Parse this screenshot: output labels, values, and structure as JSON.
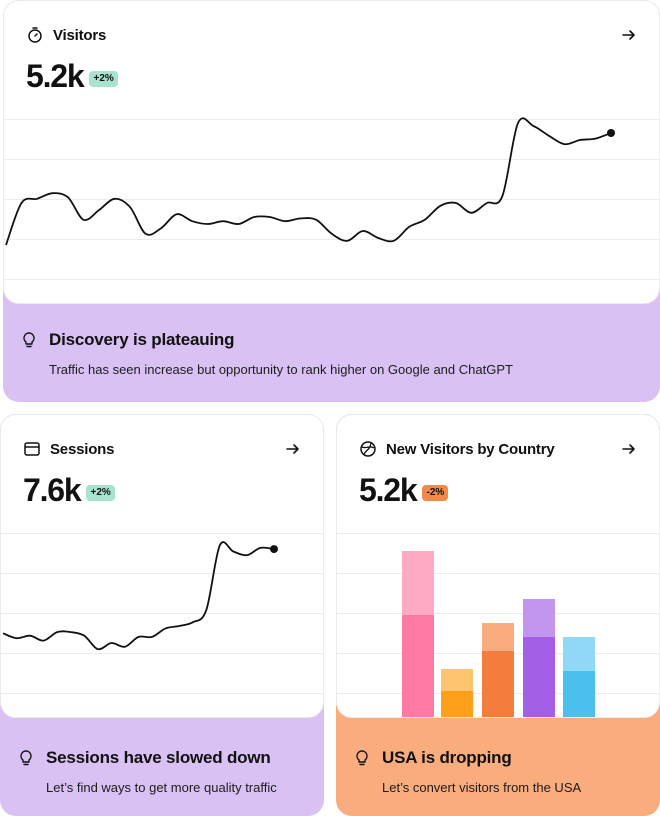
{
  "colors": {
    "purple_insight": "#d9c1f4",
    "orange_insight": "#f9ac7d",
    "badge_green_bg": "#a7e3cf",
    "badge_orange_bg": "#f08a4b",
    "line": "#111111"
  },
  "visitors": {
    "icon": "stopwatch-icon",
    "title": "Visitors",
    "value": "5.2k",
    "change": "+2%",
    "insight_title": "Discovery is plateauing",
    "insight_text": "Traffic has seen increase but opportunity to rank higher on Google and ChatGPT",
    "series": [
      10,
      40,
      43,
      47,
      44,
      28,
      35,
      43,
      37,
      18,
      22,
      32,
      27,
      25,
      27,
      25,
      30,
      30,
      27,
      29,
      28,
      18,
      13,
      20,
      15,
      13,
      23,
      28,
      38,
      40,
      33,
      40,
      45,
      97,
      95,
      88,
      82,
      85,
      86,
      90
    ]
  },
  "sessions": {
    "icon": "browser-window-icon",
    "title": "Sessions",
    "value": "7.6k",
    "change": "+2%",
    "insight_title": "Sessions have slowed down",
    "insight_text": "Let’s find ways to get more quality traffic",
    "series": [
      26,
      22,
      24,
      20,
      27,
      27,
      24,
      13,
      18,
      15,
      23,
      23,
      30,
      32,
      35,
      45,
      98,
      93,
      90,
      96,
      95
    ]
  },
  "country": {
    "icon": "globe-icon",
    "title": "New Visitors by Country",
    "value": "5.2k",
    "change": "-2%",
    "insight_title": "USA is dropping",
    "insight_text": "Let’s convert visitors from the USA",
    "bars": [
      {
        "base": 104,
        "top": 64,
        "base_color": "#ff7aa2",
        "top_color": "#ffaac4"
      },
      {
        "base": 28,
        "top": 22,
        "base_color": "#ff9f1a",
        "top_color": "#ffc46f"
      },
      {
        "base": 68,
        "top": 28,
        "base_color": "#f47c3c",
        "top_color": "#f9ac7d"
      },
      {
        "base": 82,
        "top": 38,
        "base_color": "#a55ee6",
        "top_color": "#c295ee"
      },
      {
        "base": 48,
        "top": 34,
        "base_color": "#4bbfee",
        "top_color": "#8fd9f7"
      }
    ]
  }
}
